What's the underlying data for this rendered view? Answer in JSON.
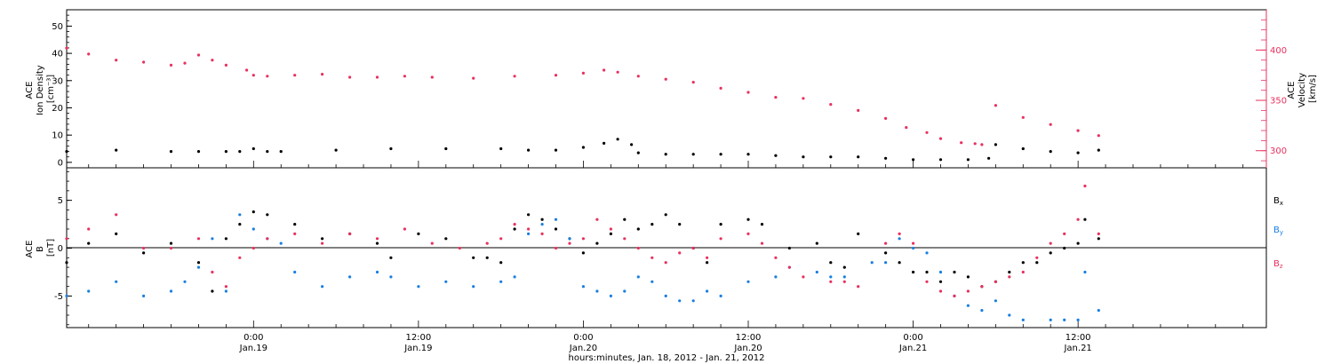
{
  "colors": {
    "density": "#000000",
    "velocity": "#e8315f",
    "bx": "#000000",
    "by": "#1a7fe0",
    "bz": "#e8315f",
    "axis": "#000000"
  },
  "x_axis": {
    "title": "hours:minutes, Jan. 18, 2012 - Jan. 21, 2012",
    "ticks": [
      {
        "hour": 24,
        "time": "0:00",
        "date": "Jan.19"
      },
      {
        "hour": 36,
        "time": "12:00",
        "date": "Jan.19"
      },
      {
        "hour": 48,
        "time": "0:00",
        "date": "Jan.20"
      },
      {
        "hour": 60,
        "time": "12:00",
        "date": "Jan.20"
      },
      {
        "hour": 72,
        "time": "0:00",
        "date": "Jan.21"
      },
      {
        "hour": 84,
        "time": "12:00",
        "date": "Jan.21"
      }
    ]
  },
  "chart_data": [
    {
      "type": "scatter",
      "panel": "top",
      "x_units": "hours since 2012-01-18 00:00",
      "xlim": [
        10.4,
        97.7
      ],
      "left_axis": {
        "label_lines": [
          "ACE",
          "Ion Density",
          "[cm⁻³]"
        ],
        "ylim": [
          -2,
          56
        ],
        "ticks": [
          0,
          10,
          20,
          30,
          40,
          50
        ]
      },
      "right_axis": {
        "label_lines": [
          "ACE",
          "Velocity",
          "[km/s]"
        ],
        "ylim": [
          283,
          440
        ],
        "ticks": [
          300,
          350,
          400
        ]
      },
      "series": [
        {
          "axis": "left",
          "x": [
            10.4,
            14,
            18,
            20,
            22,
            23,
            24,
            25,
            26,
            30,
            34,
            38,
            42,
            44,
            46,
            48,
            49.5,
            50.5,
            51.5,
            52,
            54,
            56,
            58,
            60,
            62,
            64,
            66,
            68,
            70,
            72,
            74,
            76,
            77.5,
            78,
            80,
            82,
            84,
            85.5
          ],
          "y": [
            4,
            4.5,
            4,
            4,
            4,
            4,
            5,
            4,
            4,
            4.5,
            5,
            5,
            5,
            4.5,
            4.5,
            5.5,
            7,
            8.5,
            6.5,
            3.5,
            3,
            3,
            3,
            3,
            2.5,
            2,
            2,
            2,
            1.5,
            1,
            1,
            1,
            1.5,
            6.5,
            5,
            4,
            3.5,
            4.5
          ]
        },
        {
          "axis": "right",
          "x": [
            10.4,
            12,
            14,
            16,
            18,
            19,
            20,
            21,
            22,
            23.5,
            24,
            25,
            27,
            29,
            31,
            33,
            35,
            37,
            40,
            43,
            46,
            48,
            49.5,
            50.5,
            52,
            54,
            56,
            58,
            60,
            62,
            64,
            66,
            68,
            70,
            71.5,
            73,
            74,
            75.5,
            76.5,
            77,
            78,
            80,
            82,
            84,
            85.5
          ],
          "y": [
            402,
            396,
            390,
            388,
            385,
            387,
            395,
            390,
            385,
            380,
            375,
            374,
            375,
            376,
            373,
            373,
            374,
            373,
            372,
            374,
            375,
            377,
            380,
            378,
            374,
            371,
            368,
            362,
            358,
            353,
            352,
            346,
            340,
            332,
            323,
            318,
            312,
            308,
            307,
            306,
            345,
            333,
            326,
            320,
            315
          ]
        }
      ]
    },
    {
      "type": "scatter",
      "panel": "bottom",
      "x_units": "hours since 2012-01-18 00:00",
      "xlim": [
        10.4,
        97.7
      ],
      "ylabel_lines": [
        "ACE",
        "B",
        "[nT]"
      ],
      "ylim": [
        -8.3,
        8.4
      ],
      "ticks": [
        -5,
        0,
        5
      ],
      "legend": [
        "Bx",
        "By",
        "Bz"
      ],
      "series": [
        {
          "name": "Bx",
          "x": [
            10.4,
            12,
            14,
            16,
            18,
            20,
            21,
            22,
            23,
            24,
            25,
            27,
            29,
            31,
            33,
            34,
            36,
            38,
            40,
            41,
            42,
            43,
            44,
            45,
            46,
            47,
            48,
            49,
            50,
            51,
            52,
            53,
            54,
            55,
            56,
            57,
            58,
            60,
            61,
            63,
            65,
            66,
            67,
            68,
            70,
            71,
            72,
            73,
            74,
            75,
            76,
            77,
            78,
            79,
            80,
            81,
            82,
            83,
            84,
            84.5,
            85.5
          ],
          "y": [
            -1.5,
            0.5,
            1.5,
            -0.5,
            0.5,
            -1.5,
            -4.5,
            1,
            2.5,
            3.8,
            3.5,
            2.5,
            1,
            1.5,
            0.5,
            -1,
            1.5,
            1,
            -1,
            -1,
            -1.5,
            2,
            3.5,
            3,
            2,
            1,
            -0.5,
            0.5,
            1.5,
            3,
            2,
            2.5,
            3.5,
            2.5,
            0,
            -1.5,
            2.5,
            3,
            2.5,
            0,
            0.5,
            -1.5,
            -2,
            1.5,
            -0.5,
            -1.5,
            -2.5,
            -2.5,
            -3.5,
            -2.5,
            -3,
            -4,
            -3.5,
            -2.5,
            -1.5,
            -1.5,
            -0.5,
            0,
            0.5,
            3,
            1
          ]
        },
        {
          "name": "By",
          "x": [
            10.4,
            12,
            14,
            16,
            18,
            19,
            20,
            21,
            22,
            23,
            24,
            25,
            26,
            27,
            29,
            31,
            33,
            34,
            36,
            38,
            40,
            42,
            43,
            44,
            45,
            46,
            47,
            48,
            49,
            50,
            51,
            52,
            53,
            54,
            55,
            56,
            57,
            58,
            60,
            62,
            63,
            65,
            66,
            67,
            69,
            70,
            71,
            72,
            73,
            74,
            75,
            76,
            77,
            78,
            79,
            80,
            82,
            83,
            84,
            84.5,
            85.5
          ],
          "y": [
            -5,
            -4.5,
            -3.5,
            -5,
            -4.5,
            -3.5,
            -2,
            1,
            -4.5,
            3.5,
            2,
            1,
            0.5,
            -2.5,
            -4,
            -3,
            -2.5,
            -3,
            -4,
            -3.5,
            -4,
            -3.5,
            -3,
            1.5,
            2.5,
            3,
            1,
            -4,
            -4.5,
            -5,
            -4.5,
            -3,
            -3.5,
            -5,
            -5.5,
            -5.5,
            -4.5,
            -5,
            -3.5,
            -3,
            -2,
            -2.5,
            -3,
            -3,
            -1.5,
            -1.5,
            1,
            0,
            -0.5,
            -2.5,
            -5,
            -6,
            -6.5,
            -5.5,
            -7,
            -7.5,
            -7.5,
            -7.5,
            -7.5,
            -2.5,
            -6.5
          ]
        },
        {
          "name": "Bz",
          "x": [
            10.4,
            12,
            14,
            16,
            18,
            20,
            21,
            22,
            23,
            24,
            25,
            27,
            29,
            31,
            33,
            35,
            37,
            39,
            41,
            42,
            43,
            44,
            45,
            46,
            47,
            48,
            49,
            50,
            51,
            52,
            53,
            54,
            55,
            56,
            57,
            58,
            60,
            61,
            62,
            63,
            64,
            66,
            67,
            68,
            70,
            71,
            72,
            73,
            74,
            75,
            76,
            77,
            78,
            79,
            80,
            81,
            82,
            83,
            84,
            84.5,
            85.5
          ],
          "y": [
            1,
            2,
            3.5,
            0,
            0,
            1,
            -2.5,
            -4,
            -1,
            0,
            1,
            1.5,
            0.5,
            1.5,
            1,
            2,
            0.5,
            0,
            0.5,
            1,
            2.5,
            2,
            1.5,
            0,
            0.5,
            1,
            3,
            2,
            1,
            0,
            -1,
            -1.5,
            -0.5,
            0,
            -1,
            1,
            1.5,
            0.5,
            -1,
            -2,
            -3,
            -3.5,
            -3.5,
            -4,
            0.5,
            1.5,
            0.5,
            -3.5,
            -4.5,
            -5,
            -4.5,
            -4,
            -3.5,
            -3,
            -2.5,
            -1,
            0.5,
            1.5,
            3,
            6.5,
            1.5
          ]
        }
      ]
    }
  ]
}
